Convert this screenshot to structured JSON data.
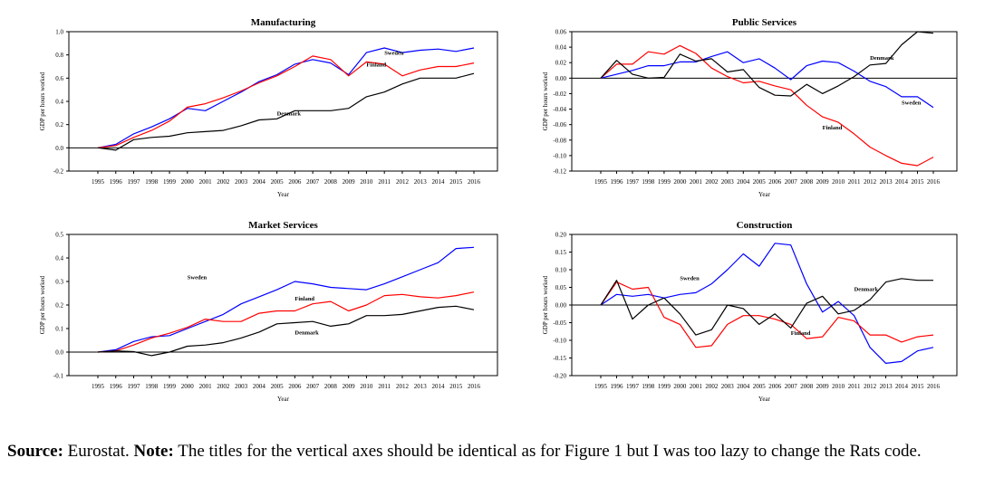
{
  "charts": [
    {
      "title": "Manufacturing",
      "ylabel": "GDP per hours worked",
      "xlabel": "Year",
      "years": [
        "1995",
        "1996",
        "1997",
        "1998",
        "1999",
        "2000",
        "2001",
        "2002",
        "2003",
        "2004",
        "2005",
        "2006",
        "2007",
        "2008",
        "2009",
        "2010",
        "2011",
        "2012",
        "2013",
        "2014",
        "2015",
        "2016"
      ],
      "yticks": [
        -0.2,
        0.0,
        0.2,
        0.4,
        0.6,
        0.8,
        1.0
      ],
      "ytick_labels": [
        "-0.2",
        "0.0",
        "0.2",
        "0.4",
        "0.6",
        "0.8",
        "1.0"
      ],
      "ylim": [
        -0.2,
        1.0
      ],
      "series": [
        {
          "name": "Sweden",
          "color": "#0000ff",
          "values": [
            0,
            0.03,
            0.12,
            0.18,
            0.25,
            0.34,
            0.32,
            0.4,
            0.48,
            0.57,
            0.63,
            0.72,
            0.76,
            0.73,
            0.63,
            0.82,
            0.86,
            0.82,
            0.84,
            0.85,
            0.83,
            0.86
          ]
        },
        {
          "name": "Finland",
          "color": "#ff0000",
          "values": [
            0,
            0.02,
            0.09,
            0.15,
            0.23,
            0.35,
            0.38,
            0.43,
            0.49,
            0.56,
            0.62,
            0.7,
            0.79,
            0.76,
            0.62,
            0.74,
            0.72,
            0.62,
            0.67,
            0.7,
            0.7,
            0.73
          ]
        },
        {
          "name": "Denmark",
          "color": "#000000",
          "values": [
            0,
            -0.02,
            0.07,
            0.09,
            0.1,
            0.13,
            0.14,
            0.15,
            0.19,
            0.24,
            0.25,
            0.32,
            0.32,
            0.32,
            0.34,
            0.44,
            0.48,
            0.55,
            0.6,
            0.6,
            0.6,
            0.64
          ]
        }
      ],
      "annotations": [
        {
          "label": "Sweden",
          "year": 2011,
          "value": 0.8
        },
        {
          "label": "Finland",
          "year": 2010,
          "value": 0.7
        },
        {
          "label": "Denmark",
          "year": 2005,
          "value": 0.28
        }
      ]
    },
    {
      "title": "Public Services",
      "ylabel": "GDP per hours worked",
      "xlabel": "Year",
      "years": [
        "1995",
        "1996",
        "1997",
        "1998",
        "1999",
        "2000",
        "2001",
        "2002",
        "2003",
        "2004",
        "2005",
        "2006",
        "2007",
        "2008",
        "2009",
        "2010",
        "2011",
        "2012",
        "2013",
        "2014",
        "2015",
        "2016"
      ],
      "yticks": [
        -0.12,
        -0.1,
        -0.08,
        -0.06,
        -0.04,
        -0.02,
        0.0,
        0.02,
        0.04,
        0.06
      ],
      "ytick_labels": [
        "-0.12",
        "-0.10",
        "-0.08",
        "-0.06",
        "-0.04",
        "-0.02",
        "0.00",
        "0.02",
        "0.04",
        "0.06"
      ],
      "ylim": [
        -0.12,
        0.06
      ],
      "series": [
        {
          "name": "Sweden",
          "color": "#0000ff",
          "values": [
            0,
            0.005,
            0.01,
            0.016,
            0.016,
            0.021,
            0.021,
            0.028,
            0.034,
            0.02,
            0.025,
            0.013,
            -0.002,
            0.016,
            0.022,
            0.02,
            0.009,
            -0.004,
            -0.011,
            -0.024,
            -0.024,
            -0.038
          ]
        },
        {
          "name": "Finland",
          "color": "#ff0000",
          "values": [
            0,
            0.018,
            0.018,
            0.034,
            0.031,
            0.042,
            0.032,
            0.013,
            0.002,
            -0.006,
            -0.004,
            -0.01,
            -0.015,
            -0.035,
            -0.05,
            -0.057,
            -0.072,
            -0.089,
            -0.1,
            -0.11,
            -0.113,
            -0.102
          ]
        },
        {
          "name": "Denmark",
          "color": "#000000",
          "values": [
            0,
            0.023,
            0.005,
            0.0,
            0.001,
            0.031,
            0.022,
            0.025,
            0.008,
            0.011,
            -0.012,
            -0.022,
            -0.023,
            -0.008,
            -0.02,
            -0.01,
            0.002,
            0.017,
            0.019,
            0.043,
            0.06,
            0.058
          ]
        }
      ],
      "annotations": [
        {
          "label": "Denmark",
          "year": 2012,
          "value": 0.024
        },
        {
          "label": "Sweden",
          "year": 2014,
          "value": -0.034
        },
        {
          "label": "Finland",
          "year": 2009,
          "value": -0.066
        }
      ]
    },
    {
      "title": "Market Services",
      "ylabel": "GDP per hours worked",
      "xlabel": "Year",
      "years": [
        "1995",
        "1996",
        "1997",
        "1998",
        "1999",
        "2000",
        "2001",
        "2002",
        "2003",
        "2004",
        "2005",
        "2006",
        "2007",
        "2008",
        "2009",
        "2010",
        "2011",
        "2012",
        "2013",
        "2014",
        "2015",
        "2016"
      ],
      "yticks": [
        -0.1,
        0.0,
        0.1,
        0.2,
        0.3,
        0.4,
        0.5
      ],
      "ytick_labels": [
        "-0.1",
        "0.0",
        "0.1",
        "0.2",
        "0.3",
        "0.4",
        "0.5"
      ],
      "ylim": [
        -0.1,
        0.5
      ],
      "series": [
        {
          "name": "Sweden",
          "color": "#0000ff",
          "values": [
            0,
            0.01,
            0.045,
            0.065,
            0.07,
            0.1,
            0.13,
            0.16,
            0.205,
            0.235,
            0.265,
            0.3,
            0.29,
            0.275,
            0.27,
            0.265,
            0.29,
            0.32,
            0.35,
            0.38,
            0.44,
            0.445
          ]
        },
        {
          "name": "Finland",
          "color": "#ff0000",
          "values": [
            0,
            0.005,
            0.03,
            0.06,
            0.08,
            0.105,
            0.14,
            0.13,
            0.13,
            0.165,
            0.175,
            0.175,
            0.205,
            0.215,
            0.175,
            0.2,
            0.24,
            0.245,
            0.235,
            0.23,
            0.24,
            0.255
          ]
        },
        {
          "name": "Denmark",
          "color": "#000000",
          "values": [
            0,
            0.005,
            0.002,
            -0.015,
            0.0,
            0.025,
            0.03,
            0.04,
            0.06,
            0.085,
            0.12,
            0.125,
            0.13,
            0.11,
            0.12,
            0.155,
            0.155,
            0.16,
            0.175,
            0.19,
            0.195,
            0.18
          ]
        }
      ],
      "annotations": [
        {
          "label": "Sweden",
          "year": 2000,
          "value": 0.31
        },
        {
          "label": "Finland",
          "year": 2006,
          "value": 0.22
        },
        {
          "label": "Denmark",
          "year": 2006,
          "value": 0.075
        }
      ]
    },
    {
      "title": "Construction",
      "ylabel": "GDP per hours worked",
      "xlabel": "Year",
      "years": [
        "1995",
        "1996",
        "1997",
        "1998",
        "1999",
        "2000",
        "2001",
        "2002",
        "2003",
        "2004",
        "2005",
        "2006",
        "2007",
        "2008",
        "2009",
        "2010",
        "2011",
        "2012",
        "2013",
        "2014",
        "2015",
        "2016"
      ],
      "yticks": [
        -0.2,
        -0.15,
        -0.1,
        -0.05,
        0.0,
        0.05,
        0.1,
        0.15,
        0.2
      ],
      "ytick_labels": [
        "-0.20",
        "-0.15",
        "-0.10",
        "-0.05",
        "0.00",
        "0.05",
        "0.10",
        "0.15",
        "0.20"
      ],
      "ylim": [
        -0.2,
        0.2
      ],
      "series": [
        {
          "name": "Sweden",
          "color": "#0000ff",
          "values": [
            0,
            0.03,
            0.025,
            0.03,
            0.02,
            0.03,
            0.035,
            0.06,
            0.1,
            0.145,
            0.11,
            0.175,
            0.17,
            0.06,
            -0.02,
            0.01,
            -0.03,
            -0.12,
            -0.165,
            -0.16,
            -0.13,
            -0.12
          ]
        },
        {
          "name": "Finland",
          "color": "#ff0000",
          "values": [
            0,
            0.065,
            0.045,
            0.05,
            -0.035,
            -0.055,
            -0.12,
            -0.115,
            -0.055,
            -0.03,
            -0.03,
            -0.04,
            -0.055,
            -0.095,
            -0.09,
            -0.035,
            -0.045,
            -0.085,
            -0.085,
            -0.105,
            -0.09,
            -0.085
          ]
        },
        {
          "name": "Denmark",
          "color": "#000000",
          "values": [
            0,
            0.07,
            -0.04,
            0.0,
            0.02,
            -0.025,
            -0.085,
            -0.07,
            0.0,
            -0.01,
            -0.055,
            -0.025,
            -0.065,
            0.005,
            0.025,
            -0.025,
            -0.015,
            0.015,
            0.065,
            0.075,
            0.07,
            0.07
          ]
        }
      ],
      "annotations": [
        {
          "label": "Sweden",
          "year": 2000,
          "value": 0.07
        },
        {
          "label": "Denmark",
          "year": 2011,
          "value": 0.04
        },
        {
          "label": "Finland",
          "year": 2007,
          "value": -0.085
        }
      ]
    }
  ],
  "caption": {
    "source_label": "Source:",
    "source_text": " Eurostat. ",
    "note_label": "Note:",
    "note_text": " The titles for the vertical axes should be identical as for Figure 1 but I was too lazy to change the Rats code."
  }
}
